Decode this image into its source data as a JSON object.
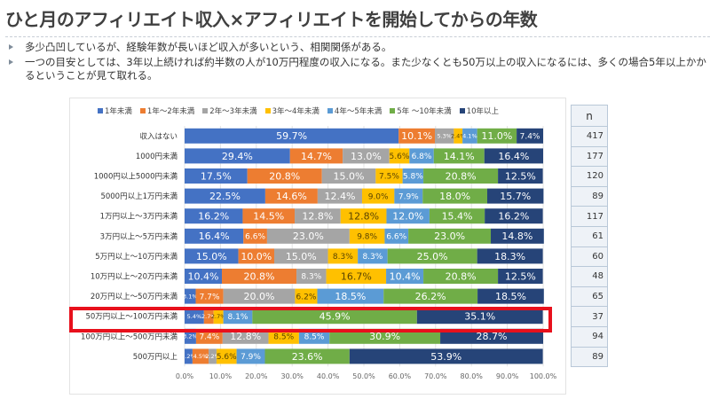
{
  "header": {
    "title": "ひと月のアフィリエイト収入×アフィリエイトを開始してからの年数"
  },
  "bullets": [
    "多少凸凹しているが、経験年数が長いほど収入が多いという、相関関係がある。",
    "一つの目安としては、3年以上続ければ約半数の人が10万円程度の収入になる。また少なくとも50万以上の収入になるには、多くの場合5年以上かかるということが見て取れる。"
  ],
  "n_table": {
    "header": "n",
    "values": [
      "417",
      "177",
      "120",
      "89",
      "117",
      "61",
      "60",
      "48",
      "65",
      "37",
      "94",
      "89"
    ]
  },
  "highlight": {
    "row_label": "50万円以上～100万円未満",
    "color": "#e8101c"
  },
  "chart_data": {
    "type": "bar",
    "orientation": "horizontal",
    "stacked": "100%",
    "title": "",
    "xlabel": "",
    "ylabel": "",
    "xlim": [
      0,
      100
    ],
    "x_ticks": [
      "0.0%",
      "10.0%",
      "20.0%",
      "30.0%",
      "40.0%",
      "50.0%",
      "60.0%",
      "70.0%",
      "80.0%",
      "90.0%",
      "100.0%"
    ],
    "grid": true,
    "legend_position": "top",
    "categories": [
      "収入はない",
      "1000円未満",
      "1000円以上5000円未満",
      "5000円以上1万円未満",
      "1万円以上～3万円未満",
      "3万円以上～5万円未満",
      "5万円以上～10万円未満",
      "10万円以上～20万円未満",
      "20万円以上～50万円未満",
      "50万円以上～100万円未満",
      "100万円以上～500万円未満",
      "500万円以上"
    ],
    "series": [
      {
        "name": "1年未満",
        "color": "#4472c4",
        "values": [
          59.7,
          29.4,
          17.5,
          22.5,
          16.2,
          16.4,
          15.0,
          10.4,
          3.1,
          5.4,
          3.2,
          2.2
        ]
      },
      {
        "name": "1年～2年未満",
        "color": "#ed7d31",
        "values": [
          10.1,
          14.7,
          20.8,
          14.6,
          14.5,
          6.6,
          10.0,
          20.8,
          7.7,
          2.7,
          7.4,
          4.5
        ]
      },
      {
        "name": "2年～3年未満",
        "color": "#a5a5a5",
        "values": [
          5.3,
          13.0,
          15.0,
          12.4,
          12.8,
          23.0,
          15.0,
          8.3,
          20.0,
          0.0,
          12.8,
          2.2
        ]
      },
      {
        "name": "3年～4年未満",
        "color": "#ffc000",
        "values": [
          2.4,
          5.6,
          7.5,
          9.0,
          12.8,
          9.8,
          8.3,
          16.7,
          6.2,
          2.7,
          8.5,
          5.6
        ]
      },
      {
        "name": "4年～5年未満",
        "color": "#5b9bd5",
        "values": [
          4.1,
          6.8,
          5.8,
          7.9,
          12.0,
          6.6,
          8.3,
          10.4,
          18.5,
          8.1,
          8.5,
          7.9
        ]
      },
      {
        "name": "5年 ～10年未満",
        "color": "#70ad47",
        "values": [
          11.0,
          14.1,
          20.8,
          18.0,
          15.4,
          23.0,
          25.0,
          20.8,
          26.2,
          45.9,
          30.9,
          23.6
        ]
      },
      {
        "name": "10年以上",
        "color": "#264478",
        "values": [
          7.4,
          16.4,
          12.5,
          15.7,
          16.2,
          14.8,
          18.3,
          12.5,
          18.5,
          35.1,
          28.7,
          53.9
        ]
      }
    ]
  }
}
